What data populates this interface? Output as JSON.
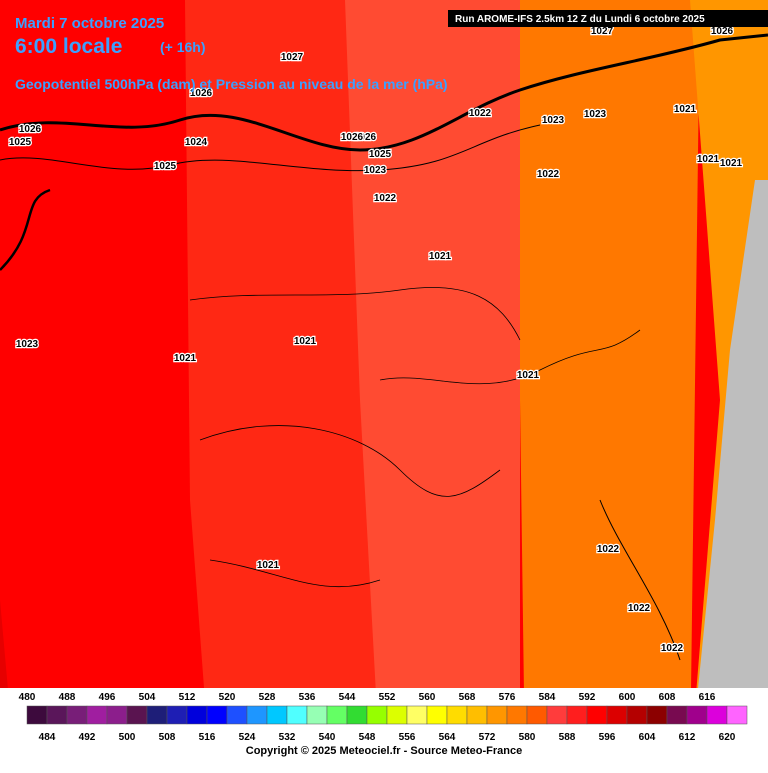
{
  "header": {
    "date": "Mardi 7 octobre 2025",
    "time": "6:00 locale",
    "lead": "(+ 16h)",
    "field": "Geopotentiel 500hPa (dam) et Pression au niveau de la mer (hPa)",
    "run": "Run AROME-IFS 2.5km 12 Z du Lundi 6 octobre 2025"
  },
  "isobar_labels": [
    "1027",
    "1026",
    "1026",
    "1026",
    "1025",
    "1024",
    "1026",
    "1025",
    "1023",
    "1025",
    "1022",
    "1022",
    "1023",
    "1023",
    "1021",
    "1022",
    "1021",
    "1021",
    "1021",
    "1023",
    "1021",
    "1021",
    "1021",
    "1021",
    "1022",
    "1022",
    "1022",
    "1027",
    "1026"
  ],
  "legend": {
    "swatches": [
      {
        "value": 480,
        "color": "#3d0a3d"
      },
      {
        "value": 484,
        "color": "#5a165a"
      },
      {
        "value": 488,
        "color": "#781e78"
      },
      {
        "value": 492,
        "color": "#a01ea0"
      },
      {
        "value": 496,
        "color": "#8c1e8c"
      },
      {
        "value": 500,
        "color": "#5a1450"
      },
      {
        "value": 504,
        "color": "#1e1e78"
      },
      {
        "value": 508,
        "color": "#1e1eb4"
      },
      {
        "value": 512,
        "color": "#0000dc"
      },
      {
        "value": 516,
        "color": "#0000ff"
      },
      {
        "value": 520,
        "color": "#1e50ff"
      },
      {
        "value": 524,
        "color": "#1e96ff"
      },
      {
        "value": 528,
        "color": "#00c8ff"
      },
      {
        "value": 532,
        "color": "#50ffff"
      },
      {
        "value": 536,
        "color": "#96ffb4"
      },
      {
        "value": 540,
        "color": "#64ff64"
      },
      {
        "value": 544,
        "color": "#32dc32"
      },
      {
        "value": 548,
        "color": "#96ff00"
      },
      {
        "value": 552,
        "color": "#dcff00"
      },
      {
        "value": 556,
        "color": "#ffff64"
      },
      {
        "value": 560,
        "color": "#ffff00"
      },
      {
        "value": 564,
        "color": "#ffdc00"
      },
      {
        "value": 568,
        "color": "#ffbe00"
      },
      {
        "value": 572,
        "color": "#ff9600"
      },
      {
        "value": 576,
        "color": "#ff7800"
      },
      {
        "value": 580,
        "color": "#ff5a00"
      },
      {
        "value": 584,
        "color": "#ff3c3c"
      },
      {
        "value": 588,
        "color": "#ff1e1e"
      },
      {
        "value": 592,
        "color": "#ff0000"
      },
      {
        "value": 596,
        "color": "#dc0000"
      },
      {
        "value": 600,
        "color": "#b40000"
      },
      {
        "value": 604,
        "color": "#8c0000"
      },
      {
        "value": 608,
        "color": "#780a50"
      },
      {
        "value": 612,
        "color": "#a0008c"
      },
      {
        "value": 616,
        "color": "#dc00dc"
      },
      {
        "value": 620,
        "color": "#ff64ff"
      }
    ]
  },
  "copyright": "Copyright © 2025 Meteociel.fr - Source Meteo-France"
}
